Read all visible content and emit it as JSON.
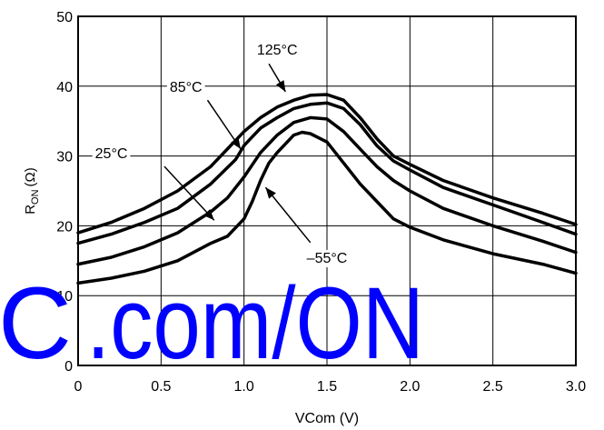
{
  "chart_data": {
    "type": "line",
    "title": "",
    "xlabel": "VCom (V)",
    "ylabel_main": "R",
    "ylabel_sub": "ON",
    "ylabel_unit": "(Ω)",
    "xlim": [
      0,
      3.0
    ],
    "ylim": [
      0,
      50
    ],
    "x_ticks": [
      0,
      0.5,
      1.0,
      1.5,
      2.0,
      2.5,
      3.0
    ],
    "x_tick_labels": [
      "0",
      "0.5",
      "1.0",
      "1.5",
      "2.0",
      "2.5",
      "3.0"
    ],
    "y_ticks": [
      0,
      10,
      20,
      30,
      40,
      50
    ],
    "y_tick_labels": [
      "0",
      "10",
      "20",
      "30",
      "40",
      "50"
    ],
    "grid": true,
    "series": [
      {
        "name": "125°C",
        "points": [
          [
            0,
            19.0
          ],
          [
            0.2,
            20.5
          ],
          [
            0.4,
            22.5
          ],
          [
            0.6,
            25.0
          ],
          [
            0.8,
            28.5
          ],
          [
            1.0,
            33.5
          ],
          [
            1.1,
            35.5
          ],
          [
            1.2,
            37.0
          ],
          [
            1.3,
            38.0
          ],
          [
            1.4,
            38.7
          ],
          [
            1.5,
            38.8
          ],
          [
            1.6,
            38.0
          ],
          [
            1.7,
            35.5
          ],
          [
            1.8,
            32.5
          ],
          [
            1.9,
            30.0
          ],
          [
            2.0,
            28.8
          ],
          [
            2.2,
            26.5
          ],
          [
            2.5,
            24.0
          ],
          [
            2.8,
            21.8
          ],
          [
            3.0,
            20.2
          ]
        ]
      },
      {
        "name": "85°C",
        "points": [
          [
            0,
            17.5
          ],
          [
            0.2,
            18.8
          ],
          [
            0.4,
            20.5
          ],
          [
            0.6,
            22.5
          ],
          [
            0.8,
            26.0
          ],
          [
            0.95,
            29.5
          ],
          [
            1.0,
            31.5
          ],
          [
            1.1,
            34.0
          ],
          [
            1.2,
            35.5
          ],
          [
            1.3,
            36.8
          ],
          [
            1.4,
            37.4
          ],
          [
            1.5,
            37.6
          ],
          [
            1.6,
            36.8
          ],
          [
            1.7,
            34.5
          ],
          [
            1.8,
            31.5
          ],
          [
            1.9,
            29.3
          ],
          [
            2.0,
            28.0
          ],
          [
            2.2,
            25.5
          ],
          [
            2.5,
            23.0
          ],
          [
            2.8,
            20.5
          ],
          [
            3.0,
            18.8
          ]
        ]
      },
      {
        "name": "25°C",
        "points": [
          [
            0,
            14.5
          ],
          [
            0.2,
            15.5
          ],
          [
            0.4,
            17.0
          ],
          [
            0.6,
            19.0
          ],
          [
            0.8,
            22.0
          ],
          [
            0.9,
            24.0
          ],
          [
            1.0,
            27.0
          ],
          [
            1.1,
            30.5
          ],
          [
            1.2,
            33.0
          ],
          [
            1.3,
            34.8
          ],
          [
            1.4,
            35.5
          ],
          [
            1.5,
            35.3
          ],
          [
            1.6,
            33.5
          ],
          [
            1.7,
            31.0
          ],
          [
            1.8,
            28.5
          ],
          [
            1.9,
            26.5
          ],
          [
            2.0,
            25.0
          ],
          [
            2.2,
            22.5
          ],
          [
            2.5,
            20.0
          ],
          [
            2.8,
            17.8
          ],
          [
            3.0,
            16.2
          ]
        ]
      },
      {
        "name": "–55°C",
        "points": [
          [
            0,
            11.8
          ],
          [
            0.2,
            12.5
          ],
          [
            0.4,
            13.5
          ],
          [
            0.6,
            15.0
          ],
          [
            0.8,
            17.5
          ],
          [
            0.9,
            18.5
          ],
          [
            1.0,
            21.0
          ],
          [
            1.05,
            23.5
          ],
          [
            1.1,
            26.5
          ],
          [
            1.15,
            29.0
          ],
          [
            1.2,
            30.5
          ],
          [
            1.3,
            33.0
          ],
          [
            1.35,
            33.4
          ],
          [
            1.4,
            33.2
          ],
          [
            1.5,
            32.0
          ],
          [
            1.6,
            29.0
          ],
          [
            1.7,
            26.0
          ],
          [
            1.8,
            23.5
          ],
          [
            1.9,
            21.0
          ],
          [
            2.0,
            19.8
          ],
          [
            2.2,
            18.0
          ],
          [
            2.5,
            16.0
          ],
          [
            2.8,
            14.5
          ],
          [
            3.0,
            13.2
          ]
        ]
      }
    ],
    "annotations": [
      {
        "text": "125°C",
        "anchor": [
          1.2,
          45.3
        ],
        "arrow_from": [
          1.15,
          43.2
        ],
        "arrow_to": [
          1.25,
          39.2
        ]
      },
      {
        "text": "85°C",
        "anchor": [
          0.65,
          40.0
        ],
        "arrow_from": [
          0.78,
          38.0
        ],
        "arrow_to": [
          0.98,
          31.0
        ]
      },
      {
        "text": "25°C",
        "anchor": [
          0.2,
          30.5
        ],
        "arrow_from": [
          0.52,
          28.5
        ],
        "arrow_to": [
          0.82,
          20.8
        ]
      },
      {
        "text": "–55°C",
        "anchor": [
          1.5,
          15.5
        ],
        "arrow_from": [
          1.4,
          17.6
        ],
        "arrow_to": [
          1.13,
          25.5
        ]
      }
    ]
  },
  "watermark": {
    "text": ".com/ON"
  }
}
